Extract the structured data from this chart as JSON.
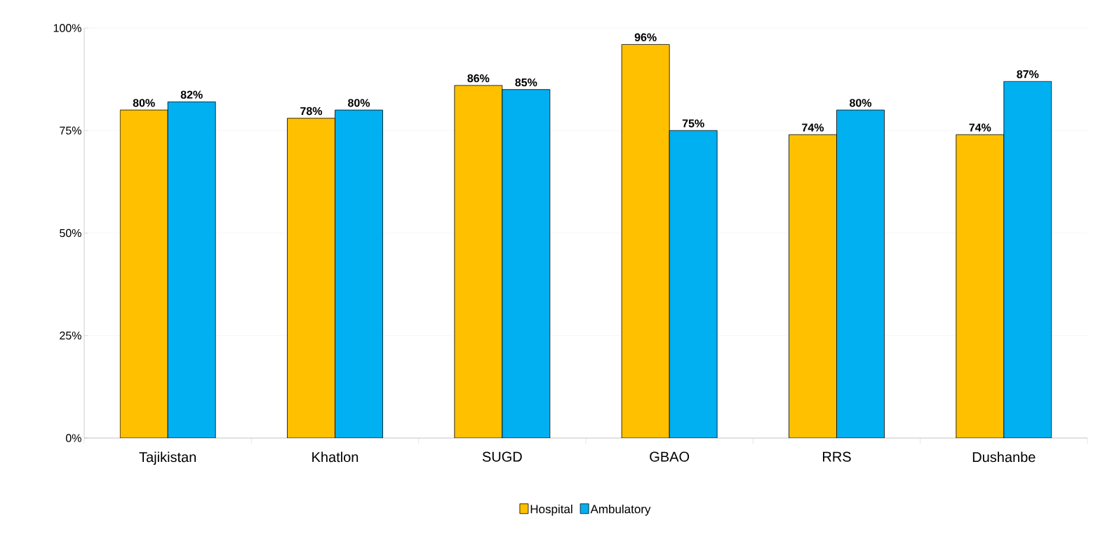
{
  "chart_data": {
    "type": "bar",
    "categories": [
      "Tajikistan",
      "Khatlon",
      "SUGD",
      "GBAO",
      "RRS",
      "Dushanbe"
    ],
    "series": [
      {
        "name": "Hospital",
        "color": "#ffc000",
        "values": [
          80,
          78,
          86,
          96,
          74,
          74
        ],
        "value_labels": [
          "80%",
          "78%",
          "86%",
          "96%",
          "74%",
          "74%"
        ]
      },
      {
        "name": "Ambulatory",
        "color": "#00b0f0",
        "values": [
          82,
          80,
          85,
          75,
          80,
          87
        ],
        "value_labels": [
          "82%",
          "80%",
          "85%",
          "75%",
          "80%",
          "87%"
        ]
      }
    ],
    "ylim": [
      0,
      100
    ],
    "yticks": [
      {
        "value": 0,
        "label": "0%"
      },
      {
        "value": 25,
        "label": "25%"
      },
      {
        "value": 50,
        "label": "50%"
      },
      {
        "value": 75,
        "label": "75%"
      },
      {
        "value": 100,
        "label": "100%"
      }
    ],
    "grid": "y",
    "legend": "bottom"
  }
}
